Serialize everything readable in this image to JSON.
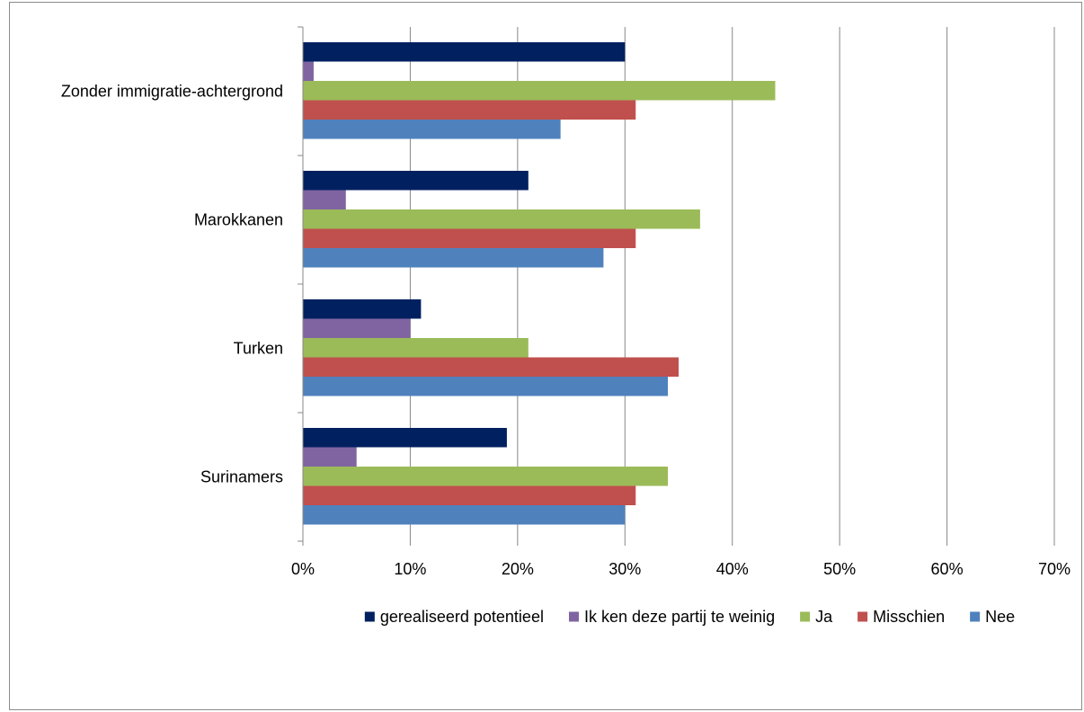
{
  "chart_data": {
    "type": "bar",
    "orientation": "horizontal",
    "title": "",
    "xlabel": "",
    "ylabel": "",
    "xlim": [
      0,
      70
    ],
    "x_ticks": [
      "0%",
      "10%",
      "20%",
      "30%",
      "40%",
      "50%",
      "60%",
      "70%"
    ],
    "grid": true,
    "legend_position": "bottom",
    "categories": [
      "Zonder immigratie-achtergrond",
      "Marokkanen",
      "Turken",
      "Surinamers"
    ],
    "series": [
      {
        "name": "gerealiseerd potentieel",
        "color": "#002060",
        "values": [
          30,
          21,
          11,
          19
        ]
      },
      {
        "name": "Ik ken deze partij te weinig",
        "color": "#8064A2",
        "values": [
          1,
          4,
          10,
          5
        ]
      },
      {
        "name": "Ja",
        "color": "#9BBB59",
        "values": [
          44,
          37,
          21,
          34
        ]
      },
      {
        "name": "Misschien",
        "color": "#C0504D",
        "values": [
          31,
          31,
          35,
          31
        ]
      },
      {
        "name": "Nee",
        "color": "#4F81BD",
        "values": [
          24,
          28,
          34,
          30
        ]
      }
    ]
  }
}
